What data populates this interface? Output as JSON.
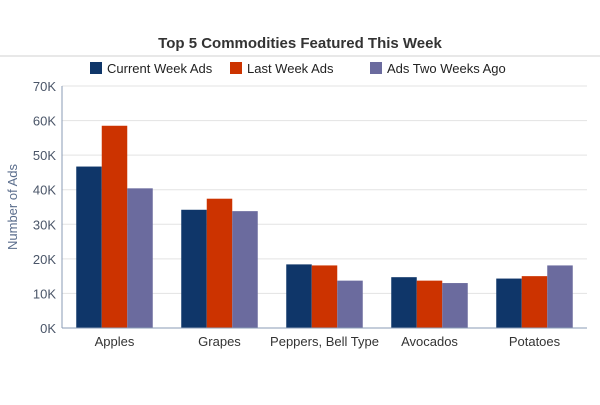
{
  "chart_data": {
    "type": "bar",
    "title": "Top 5 Commodities Featured This Week",
    "xlabel": "",
    "ylabel": "Number of Ads",
    "ylim": [
      0,
      70000
    ],
    "yticks": [
      0,
      10000,
      20000,
      30000,
      40000,
      50000,
      60000,
      70000
    ],
    "ytick_labels": [
      "0K",
      "10K",
      "20K",
      "30K",
      "40K",
      "50K",
      "60K",
      "70K"
    ],
    "categories": [
      "Apples",
      "Grapes",
      "Peppers, Bell Type",
      "Avocados",
      "Potatoes"
    ],
    "series": [
      {
        "name": "Current Week Ads",
        "color": "#0f3669",
        "values": [
          46700,
          34200,
          18400,
          14700,
          14300
        ]
      },
      {
        "name": "Last Week Ads",
        "color": "#cc3300",
        "values": [
          58500,
          37400,
          18100,
          13700,
          15000
        ]
      },
      {
        "name": "Ads Two Weeks Ago",
        "color": "#6b6b9e",
        "values": [
          40400,
          33800,
          13700,
          13000,
          18100
        ]
      }
    ],
    "grid": true,
    "legend_position": "top"
  }
}
